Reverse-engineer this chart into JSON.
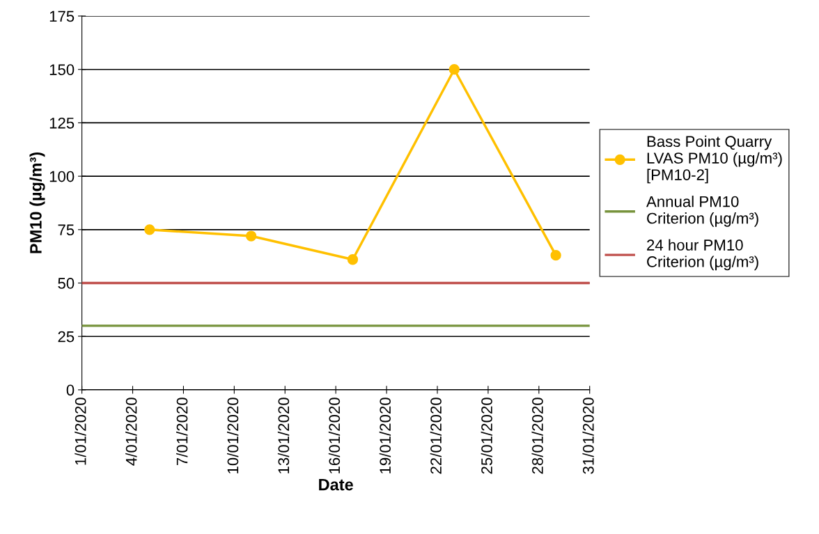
{
  "chart_data": {
    "type": "line",
    "xlabel": "Date",
    "ylabel": "PM10 (µg/m³)",
    "x": [
      "2020-01-05",
      "2020-01-11",
      "2020-01-17",
      "2020-01-23",
      "2020-01-29"
    ],
    "series": [
      {
        "name": "Bass Point Quarry LVAS PM10 (µg/m³) [PM10-2]",
        "color": "#ffc000",
        "values": [
          75,
          72,
          61,
          150,
          63
        ]
      }
    ],
    "ref_lines": [
      {
        "axis": "y",
        "value": 30,
        "label": "Annual PM10 Criterion (µg/m³)",
        "color": "#77933c"
      },
      {
        "axis": "y",
        "value": 50,
        "label": "24 hour PM10 Criterion (µg/m³)",
        "color": "#c0504d"
      }
    ],
    "xlim": [
      "2020-01-01",
      "2020-01-31"
    ],
    "xticks": [
      {
        "value": "2020-01-01",
        "label": "1/01/2020"
      },
      {
        "value": "2020-01-04",
        "label": "4/01/2020"
      },
      {
        "value": "2020-01-07",
        "label": "7/01/2020"
      },
      {
        "value": "2020-01-10",
        "label": "10/01/2020"
      },
      {
        "value": "2020-01-13",
        "label": "13/01/2020"
      },
      {
        "value": "2020-01-16",
        "label": "16/01/2020"
      },
      {
        "value": "2020-01-19",
        "label": "19/01/2020"
      },
      {
        "value": "2020-01-22",
        "label": "22/01/2020"
      },
      {
        "value": "2020-01-25",
        "label": "25/01/2020"
      },
      {
        "value": "2020-01-28",
        "label": "28/01/2020"
      },
      {
        "value": "2020-01-31",
        "label": "31/01/2020"
      }
    ],
    "ylim": [
      0,
      175
    ],
    "yticks": [
      0,
      25,
      50,
      75,
      100,
      125,
      150,
      175
    ],
    "grid": "y",
    "legend": "right",
    "marker": "circle",
    "line_style": "solid"
  }
}
